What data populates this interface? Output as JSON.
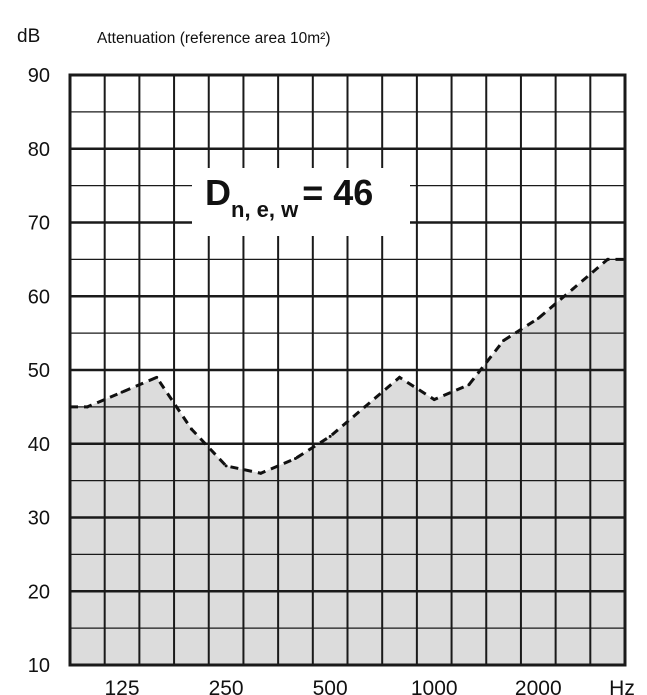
{
  "chart_data": {
    "type": "line",
    "title": "Attenuation (reference area 10m²)",
    "ylabel": "dB",
    "xlabel": "Hz",
    "ylim": [
      10,
      90
    ],
    "yticks": [
      10,
      20,
      30,
      40,
      50,
      60,
      70,
      80,
      90
    ],
    "xticks": [
      "125",
      "250",
      "500",
      "1000",
      "2000"
    ],
    "x": [
      100,
      125,
      160,
      200,
      250,
      315,
      400,
      500,
      630,
      800,
      1000,
      1250,
      1600,
      2000,
      2500,
      3150
    ],
    "series": [
      {
        "values": [
          45,
          47,
          49,
          42,
          37,
          36,
          38,
          41,
          45,
          49,
          46,
          48,
          54,
          57,
          61,
          65
        ]
      }
    ],
    "annotation": {
      "symbol": "D",
      "subscript": "n, e, w",
      "rest": "= 46"
    },
    "grid": true,
    "fill_below_curve": true,
    "colors": {
      "line": "#111111",
      "grid": "#1a1a1a",
      "fill": "#dcdcdc",
      "background": "#ffffff"
    }
  }
}
